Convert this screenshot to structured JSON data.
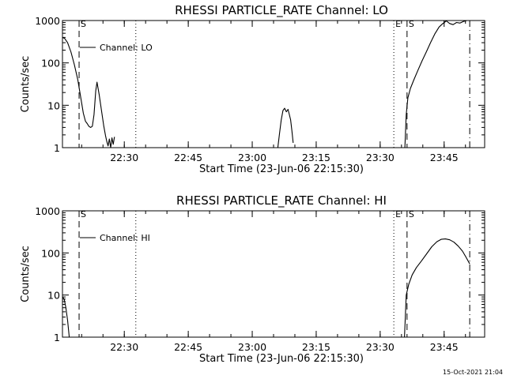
{
  "footer": {
    "timestamp": "15-Oct-2021 21:04"
  },
  "chart_data": [
    {
      "type": "line",
      "title": "RHESSI PARTICLE_RATE Channel: LO",
      "xlabel": "Start Time (23-Jun-06 22:15:30)",
      "ylabel": "Counts/sec",
      "yscale": "log",
      "ylim": [
        1,
        1000
      ],
      "xlim_minutes_after_start": [
        0,
        99
      ],
      "x_ticks": [
        "22:30",
        "22:45",
        "23:00",
        "23:15",
        "23:30",
        "23:45"
      ],
      "x_tick_minutes_after_start": [
        14.5,
        29.5,
        44.5,
        59.5,
        74.5,
        89.5
      ],
      "y_ticks": [
        "1",
        "10",
        "100",
        "1000"
      ],
      "y_tick_values": [
        1,
        10,
        100,
        1000
      ],
      "legend": {
        "position": "top-left",
        "entries": [
          "Channel: LO"
        ]
      },
      "markers": [
        {
          "style": "dashed",
          "x": 3.9,
          "label": "S"
        },
        {
          "style": "dotted",
          "x": 17.2,
          "label": ""
        },
        {
          "style": "dotted",
          "x": 77.7,
          "label": "E"
        },
        {
          "style": "dashed",
          "x": 80.8,
          "label": "S"
        },
        {
          "style": "dashdot",
          "x": 95.5,
          "label": ""
        }
      ],
      "series": [
        {
          "name": "Channel: LO",
          "segments": [
            {
              "x": [
                0,
                0.5,
                1.2,
                2,
                2.8,
                3.6,
                4.3,
                4.9,
                5.4,
                5.8,
                6.2,
                6.6,
                7,
                7.4,
                7.8,
                8.1,
                8.6,
                9.2,
                9.7,
                10.1,
                10.4,
                10.7,
                11,
                11.3,
                11.6,
                11.9,
                12.2
              ],
              "y": [
                400,
                380,
                300,
                180,
                90,
                40,
                15,
                6.5,
                4.2,
                3.7,
                3.2,
                3.0,
                3.2,
                6,
                22,
                35,
                18,
                7,
                3.2,
                1.9,
                1.4,
                1.1,
                1.6,
                1.0,
                1.7,
                1.2,
                1.8
              ]
            },
            {
              "x": [
                50.5,
                50.9,
                51.3,
                51.7,
                52.1,
                52.5,
                52.9,
                53.2,
                53.5,
                53.8,
                54.1
              ],
              "y": [
                1.0,
                2.2,
                4.5,
                7.5,
                8.5,
                7.0,
                8.0,
                6.0,
                4.5,
                2.5,
                1.3
              ]
            },
            {
              "x": [
                80.3,
                80.6,
                81,
                81.6,
                82.4,
                83.3,
                84.3,
                85.3,
                86.3,
                87.3,
                88.3,
                89.2,
                90,
                90.8,
                91.6,
                92.4,
                93.2,
                94,
                94.8,
                95.5
              ],
              "y": [
                1.0,
                6,
                15,
                25,
                40,
                65,
                110,
                180,
                300,
                480,
                700,
                850,
                980,
                850,
                800,
                900,
                870,
                950,
                1000,
                1000
              ]
            }
          ]
        }
      ]
    },
    {
      "type": "line",
      "title": "RHESSI PARTICLE_RATE Channel: HI",
      "xlabel": "Start Time (23-Jun-06 22:15:30)",
      "ylabel": "Counts/sec",
      "yscale": "log",
      "ylim": [
        1,
        1000
      ],
      "xlim_minutes_after_start": [
        0,
        99
      ],
      "x_ticks": [
        "22:30",
        "22:45",
        "23:00",
        "23:15",
        "23:30",
        "23:45"
      ],
      "x_tick_minutes_after_start": [
        14.5,
        29.5,
        44.5,
        59.5,
        74.5,
        89.5
      ],
      "y_ticks": [
        "1",
        "10",
        "100",
        "1000"
      ],
      "y_tick_values": [
        1,
        10,
        100,
        1000
      ],
      "legend": {
        "position": "top-left",
        "entries": [
          "Channel: HI"
        ]
      },
      "markers": [
        {
          "style": "dashed",
          "x": 3.9,
          "label": "S"
        },
        {
          "style": "dotted",
          "x": 17.2,
          "label": ""
        },
        {
          "style": "dotted",
          "x": 77.7,
          "label": "E"
        },
        {
          "style": "dashed",
          "x": 80.8,
          "label": "S"
        },
        {
          "style": "dashdot",
          "x": 95.5,
          "label": ""
        }
      ],
      "series": [
        {
          "name": "Channel: HI",
          "segments": [
            {
              "x": [
                0,
                0.4,
                0.8,
                1.2,
                1.6
              ],
              "y": [
                9,
                8,
                5,
                2.5,
                1.0
              ]
            },
            {
              "x": [
                80.2,
                80.6,
                81.2,
                82,
                83,
                84.2,
                85.4,
                86.6,
                87.8,
                88.8,
                89.8,
                90.8,
                91.8,
                92.8,
                93.8,
                94.6,
                95.5
              ],
              "y": [
                1.0,
                10,
                18,
                30,
                45,
                65,
                95,
                140,
                185,
                210,
                215,
                205,
                180,
                145,
                110,
                80,
                55
              ]
            }
          ]
        }
      ]
    }
  ]
}
